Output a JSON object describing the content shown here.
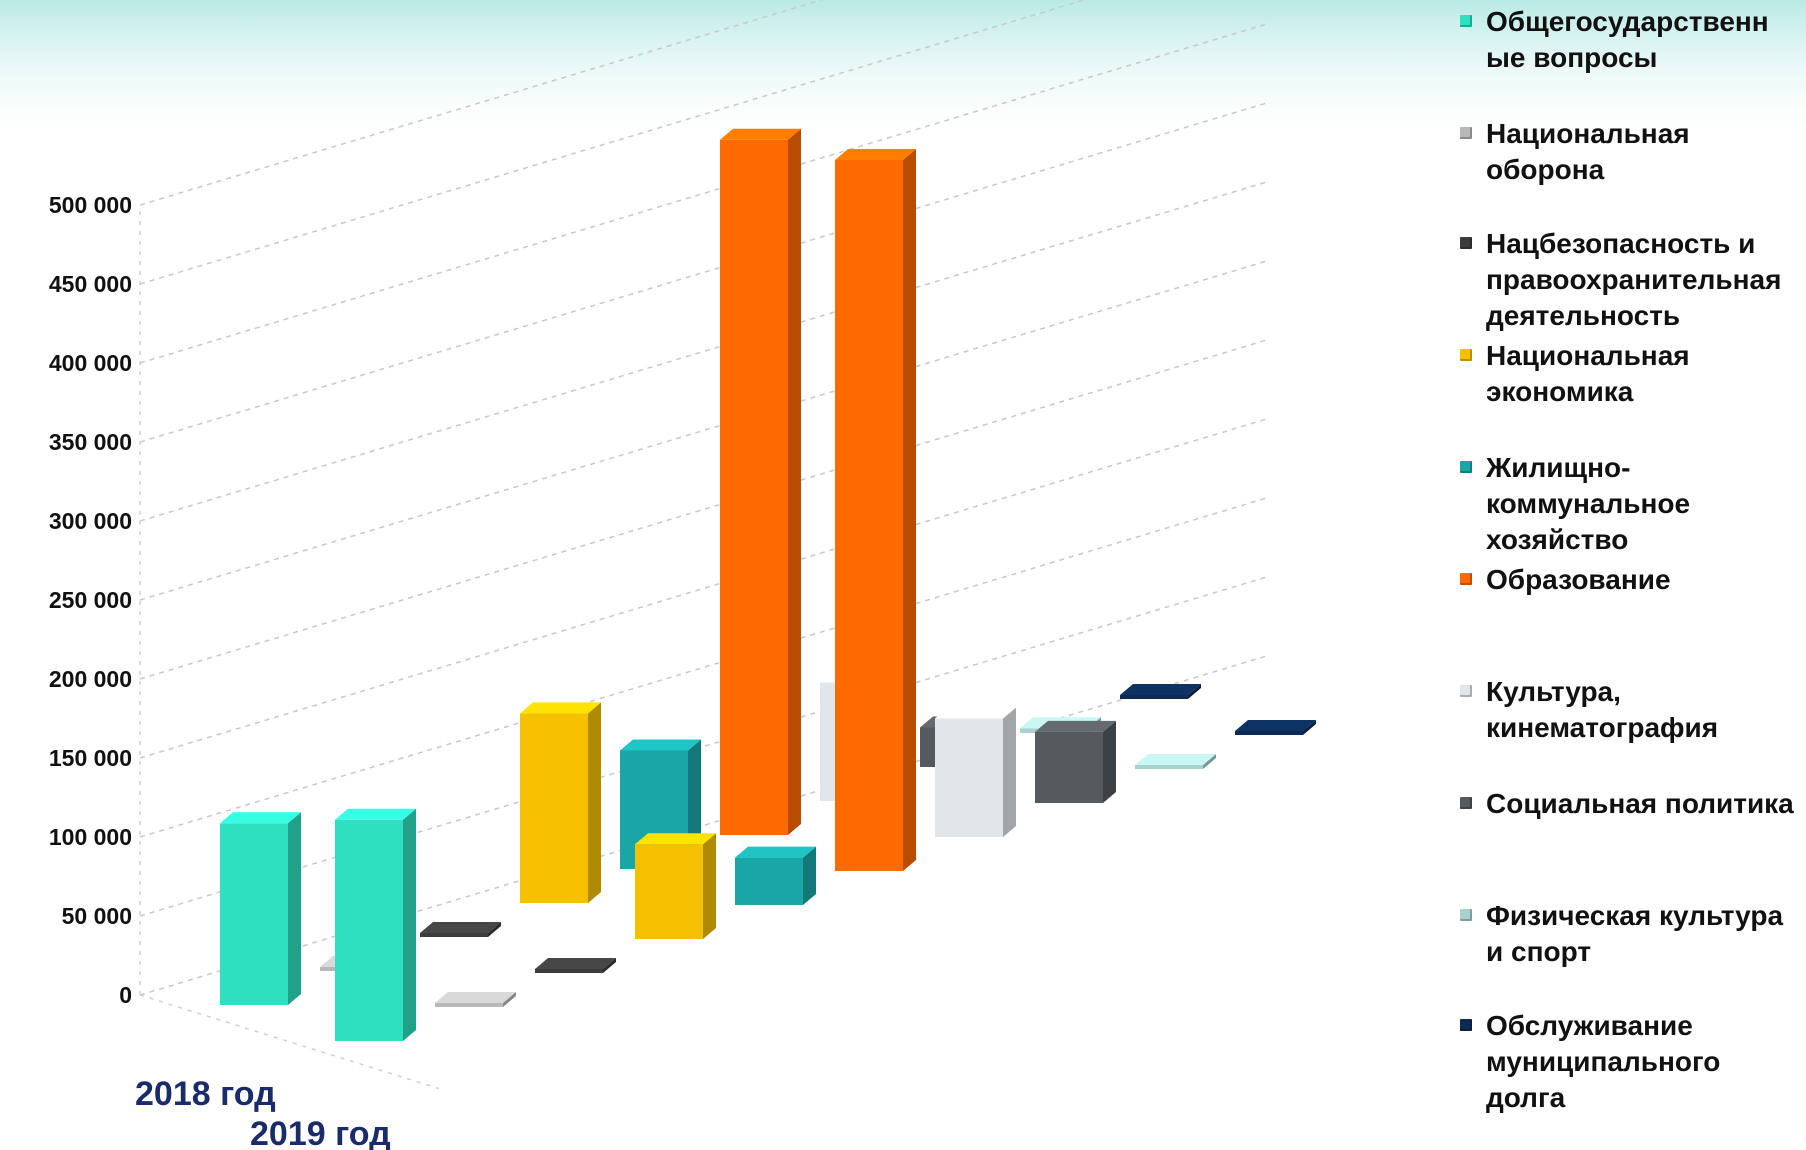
{
  "chart_data": {
    "type": "bar",
    "categories": [
      "2018 год",
      "2019 год"
    ],
    "y_ticks": [
      "0",
      "50 000",
      "100 000",
      "150 000",
      "200 000",
      "250 000",
      "300 000",
      "350 000",
      "400 000",
      "450 000",
      "500 000"
    ],
    "ylim": [
      0,
      500000
    ],
    "grid": true,
    "legend_position": "right",
    "series": [
      {
        "name": "Общегосударственные вопросы",
        "legend_label": "Общегосударственн ые вопросы",
        "color": "#2ee0c0",
        "values": [
          115000,
          140000
        ]
      },
      {
        "name": "Национальная оборона",
        "legend_label": "Национальная оборона",
        "color": "#b8b8b8",
        "values": [
          1000,
          1000
        ]
      },
      {
        "name": "Нацбезопасность и правоохранительная деятельность",
        "legend_label": "Нацбезопасность и правоохранительная деятельность",
        "color": "#3c3c3c",
        "values": [
          1000,
          1000
        ]
      },
      {
        "name": "Национальная экономика",
        "legend_label": "Национальная экономика",
        "color": "#f5c000",
        "values": [
          120000,
          60000
        ]
      },
      {
        "name": "Жилищно-коммунальное хозяйство",
        "legend_label": "Жилищно- коммунальное хозяйство",
        "color": "#1aa6a6",
        "values": [
          75000,
          30000
        ]
      },
      {
        "name": "Образование",
        "legend_label": "Образование",
        "color": "#ff6a00",
        "values": [
          440000,
          450000
        ]
      },
      {
        "name": "Культура, кинематография",
        "legend_label": "Культура, кинематография",
        "color": "#e2e6ea",
        "values": [
          75000,
          75000
        ]
      },
      {
        "name": "Социальная политика",
        "legend_label": "Социальная политика",
        "color": "#555a5e",
        "values": [
          25000,
          45000
        ]
      },
      {
        "name": "Физическая культура и спорт",
        "legend_label": "Физическая культура и спорт",
        "color": "#a9d2cf",
        "values": [
          3000,
          1000
        ]
      },
      {
        "name": "Обслуживание муниципального долга",
        "legend_label": "Обслуживание муниципального долга",
        "color": "#0d2a55",
        "values": [
          1000,
          1000
        ]
      }
    ]
  },
  "background": {
    "accent": "#7fd8d0"
  }
}
